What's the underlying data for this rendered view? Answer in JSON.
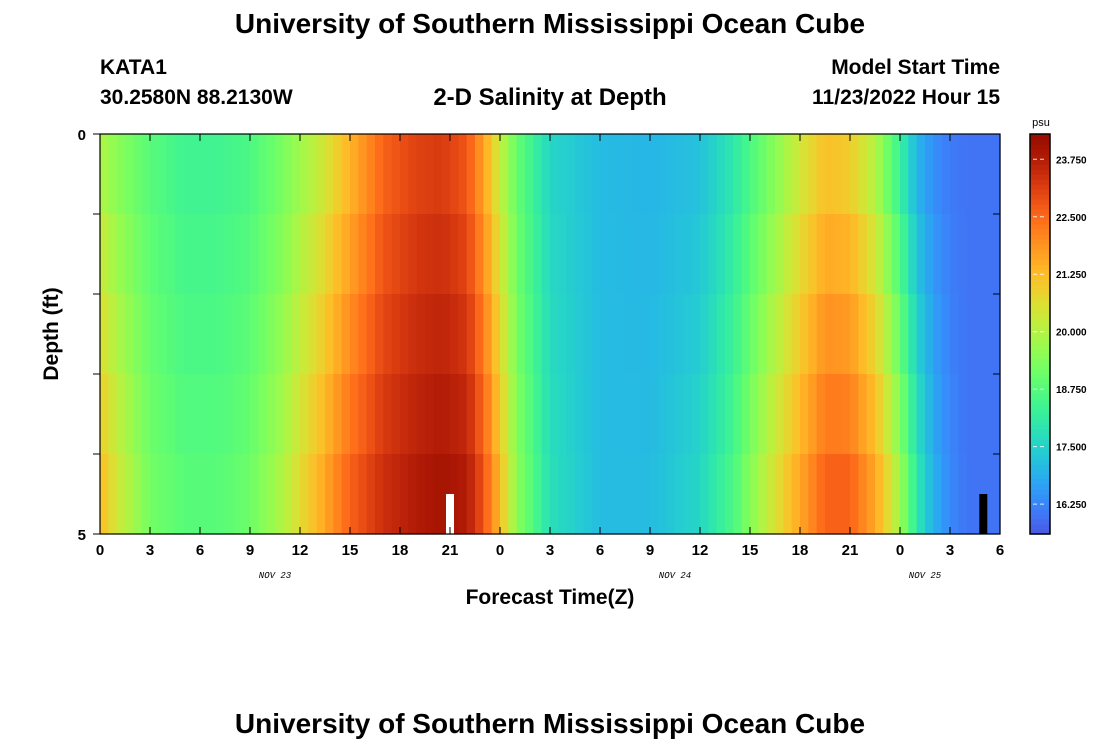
{
  "header": {
    "title": "University of Southern Mississippi Ocean Cube",
    "station": "KATA1",
    "coords": "30.2580N  88.2130W",
    "plot_title": "2-D Salinity at Depth",
    "start_label": "Model Start Time",
    "start_value": "11/23/2022 Hour 15"
  },
  "footer": {
    "title": "University of Southern Mississippi Ocean Cube"
  },
  "chart_data": {
    "type": "heatmap",
    "title": "2-D Salinity at Depth",
    "xlabel": "Forecast Time(Z)",
    "ylabel": "Depth (ft)",
    "x_tick_labels": [
      "0",
      "3",
      "6",
      "9",
      "12",
      "15",
      "18",
      "21",
      "0",
      "3",
      "6",
      "9",
      "12",
      "15",
      "18",
      "21",
      "0",
      "3",
      "6"
    ],
    "x_day_labels": [
      {
        "label": "NOV 23",
        "tick_index": 3.5
      },
      {
        "label": "NOV 24",
        "tick_index": 11.5
      },
      {
        "label": "NOV 25",
        "tick_index": 16.5
      }
    ],
    "x_range_hours": [
      0,
      54
    ],
    "y_tick_labels": [
      "0",
      "5"
    ],
    "ylim": [
      0,
      5
    ],
    "depth_levels": 5,
    "colorbar": {
      "unit": "psu",
      "range": [
        15.6,
        24.3
      ],
      "labels": [
        "23.750",
        "22.500",
        "21.250",
        "20.000",
        "18.750",
        "17.500",
        "16.250"
      ],
      "label_values": [
        23.75,
        22.5,
        21.25,
        20.0,
        18.75,
        17.5,
        16.25
      ]
    },
    "salinity_profile": {
      "hours": [
        0,
        1,
        3,
        5,
        7,
        9,
        11,
        13,
        15,
        17,
        19,
        20.5,
        22,
        23,
        24,
        25,
        27,
        30,
        33,
        36,
        38,
        40,
        42,
        43.5,
        45,
        46.5,
        48,
        49,
        50,
        51,
        52,
        54
      ],
      "surface": [
        20.0,
        19.5,
        18.8,
        18.4,
        18.4,
        18.6,
        19.3,
        20.2,
        21.4,
        22.6,
        23.1,
        23.2,
        22.8,
        21.7,
        20.3,
        19.0,
        17.6,
        17.1,
        17.0,
        17.2,
        18.0,
        19.2,
        20.4,
        21.2,
        21.0,
        20.0,
        18.3,
        17.0,
        16.4,
        16.1,
        16.0,
        16.0
      ],
      "bottom": [
        21.3,
        20.4,
        19.2,
        18.8,
        18.8,
        19.1,
        20.0,
        21.3,
        22.6,
        23.4,
        23.8,
        24.0,
        23.8,
        22.8,
        21.3,
        19.5,
        17.8,
        17.1,
        17.1,
        17.6,
        18.6,
        20.2,
        21.6,
        22.6,
        22.6,
        21.6,
        19.8,
        18.0,
        16.9,
        16.3,
        16.0,
        16.0
      ]
    },
    "markers": [
      {
        "hour": 21,
        "color": "#ffffff"
      },
      {
        "hour": 53,
        "color": "#000000"
      }
    ]
  }
}
